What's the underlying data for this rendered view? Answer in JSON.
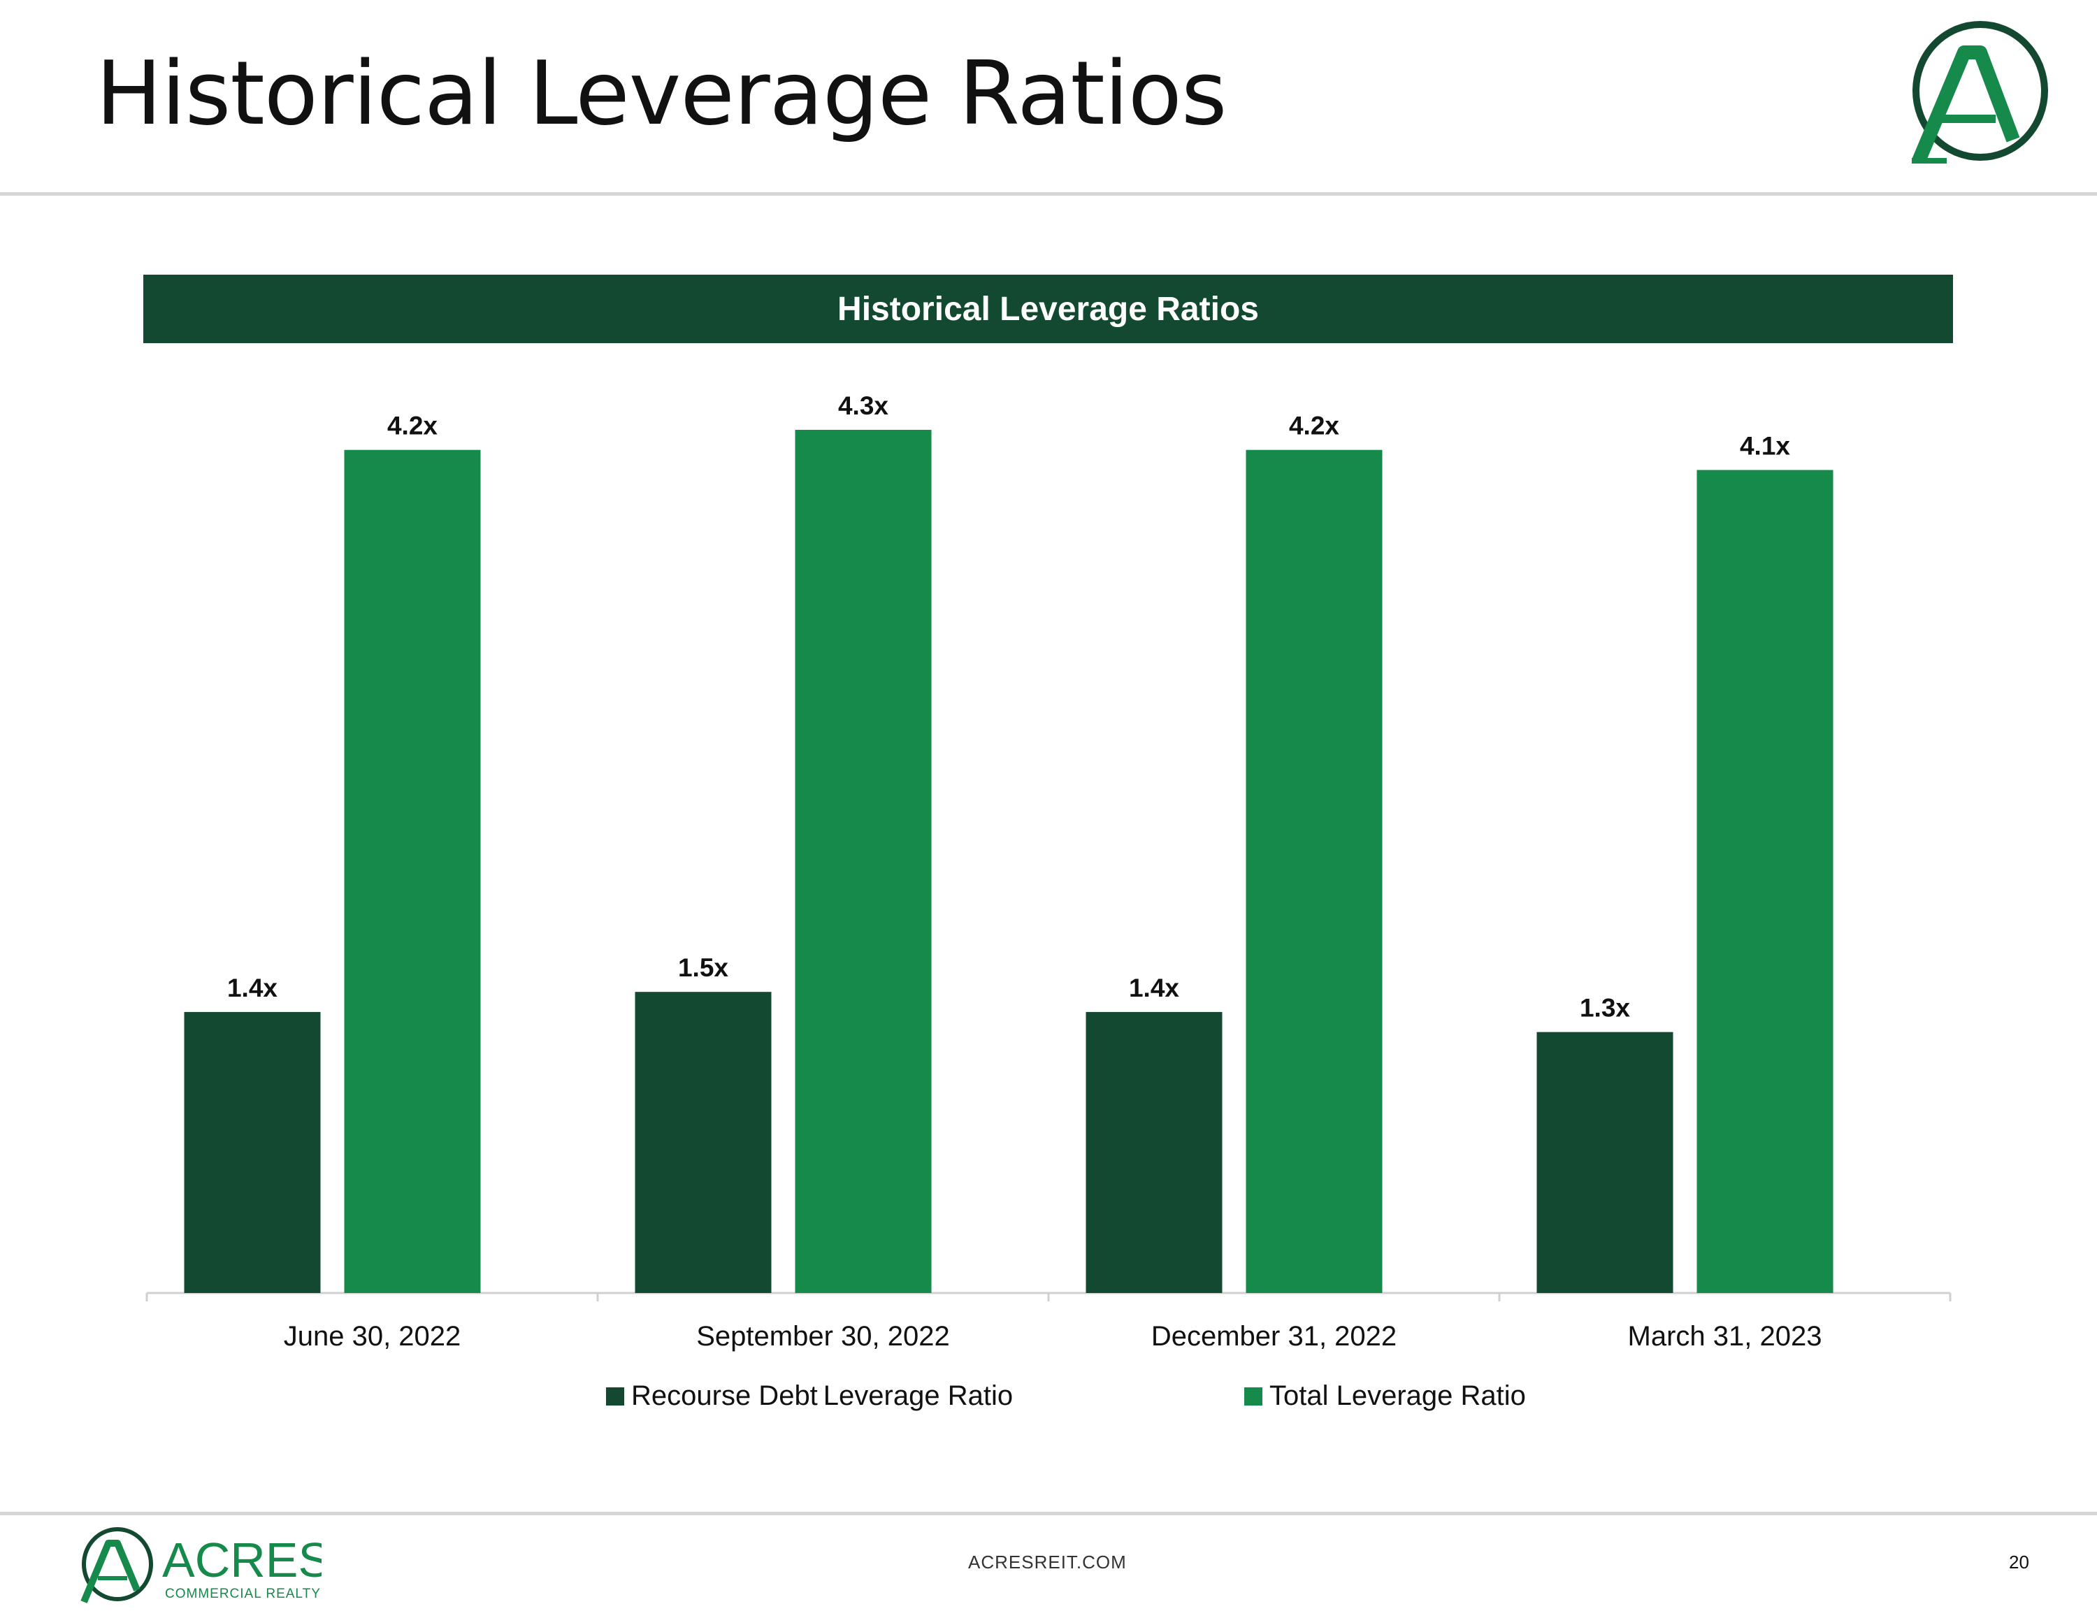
{
  "slide": {
    "title": "Historical Leverage Ratios",
    "footer_url": "ACRESREIT.COM",
    "page_number": "20",
    "footer_logo_text": "ACRES",
    "footer_logo_subtext": "COMMERCIAL REALTY"
  },
  "colors": {
    "dark_green": "#134831",
    "bright_green": "#158a4a",
    "axis": "#d0d0d0"
  },
  "chart_data": {
    "type": "bar",
    "title": "Historical Leverage Ratios",
    "categories": [
      "June 30, 2022",
      "September 30, 2022",
      "December 31, 2022",
      "March 31, 2023"
    ],
    "series": [
      {
        "name": "Recourse Debt Leverage Ratio",
        "legend_part1": "Recourse Debt",
        "legend_part2": "Leverage Ratio",
        "values": [
          1.4,
          1.5,
          1.4,
          1.3
        ],
        "labels": [
          "1.4x",
          "1.5x",
          "1.4x",
          "1.3x"
        ],
        "color": "#134831"
      },
      {
        "name": "Total Leverage Ratio",
        "values": [
          4.2,
          4.3,
          4.2,
          4.1
        ],
        "labels": [
          "4.2x",
          "4.3x",
          "4.2x",
          "4.1x"
        ],
        "color": "#158a4a"
      }
    ],
    "xlabel": "",
    "ylabel": "",
    "ylim": [
      0,
      4.3
    ],
    "grid": false,
    "legend_position": "bottom"
  }
}
